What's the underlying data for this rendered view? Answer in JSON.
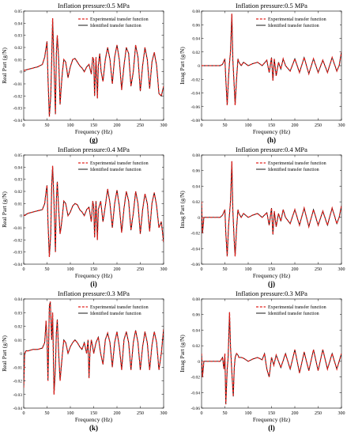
{
  "chart_data": [
    {
      "type": "line",
      "title": "Inflation pressure:0.5 MPa",
      "panel_label": "(g)",
      "xlabel": "Frequency (Hz)",
      "ylabel": "Real Part (g/N)",
      "xlim": [
        0,
        300
      ],
      "ylim": [
        -0.04,
        0.05
      ],
      "xticks": [
        "0",
        "50",
        "100",
        "150",
        "200",
        "250",
        "300"
      ],
      "yticks": [
        "-0.04",
        "-0.03",
        "-0.02",
        "-0.01",
        "0",
        "0.01",
        "0.02",
        "0.03",
        "0.04",
        "0.05"
      ],
      "legend_position": "top-right",
      "series": [
        {
          "name": "Experimental transfer function",
          "style": "dashed",
          "color": "#e0201c"
        },
        {
          "name": "Identified transfer function",
          "style": "solid",
          "color": "#000000"
        }
      ],
      "x": [
        0,
        10,
        20,
        30,
        40,
        45,
        48,
        50,
        52,
        55,
        58,
        60,
        62,
        65,
        68,
        70,
        72,
        75,
        78,
        80,
        83,
        86,
        90,
        95,
        100,
        105,
        110,
        115,
        120,
        125,
        130,
        135,
        140,
        145,
        148,
        150,
        152,
        155,
        158,
        160,
        163,
        166,
        170,
        175,
        180,
        185,
        190,
        195,
        200,
        205,
        210,
        215,
        220,
        225,
        230,
        235,
        240,
        245,
        250,
        255,
        260,
        265,
        270,
        275,
        280,
        285,
        290,
        295,
        300
      ],
      "values": [
        0.001,
        0.002,
        0.003,
        0.004,
        0.006,
        0.012,
        0.02,
        0.025,
        -0.005,
        -0.037,
        -0.02,
        0.01,
        0.044,
        0.005,
        -0.035,
        0.015,
        0.03,
        0.01,
        -0.027,
        -0.015,
        0.0,
        0.01,
        0.008,
        -0.005,
        0.004,
        0.01,
        0.011,
        0.008,
        0.005,
        0.003,
        0.0,
        0.004,
        0.006,
        -0.002,
        0.012,
        0.01,
        -0.02,
        0.012,
        -0.022,
        0.005,
        0.015,
        0.0,
        -0.008,
        0.01,
        0.02,
        0.01,
        -0.01,
        0.012,
        0.022,
        0.01,
        -0.015,
        0.005,
        0.02,
        0.015,
        -0.012,
        0.0,
        0.022,
        0.012,
        -0.016,
        0.005,
        0.02,
        0.01,
        -0.014,
        0.008,
        0.016,
        0.005,
        -0.018,
        -0.02,
        -0.012
      ]
    },
    {
      "type": "line",
      "title": "Inflation pressure:0.5 MPa",
      "panel_label": "(h)",
      "xlabel": "Frequency (Hz)",
      "ylabel": "Imag Part (g/N)",
      "xlim": [
        0,
        300
      ],
      "ylim": [
        -0.08,
        0.08
      ],
      "xticks": [
        "0",
        "50",
        "100",
        "150",
        "200",
        "250",
        "300"
      ],
      "yticks": [
        "-0.08",
        "-0.06",
        "-0.04",
        "-0.02",
        "0",
        "0.02",
        "0.04",
        "0.06",
        "0.08"
      ],
      "legend_position": "top-right",
      "series": [
        {
          "name": "Experimental transfer function",
          "style": "dashed",
          "color": "#e0201c"
        },
        {
          "name": "Identified transfer function",
          "style": "solid",
          "color": "#000000"
        }
      ],
      "x": [
        0,
        10,
        20,
        30,
        40,
        45,
        50,
        52,
        55,
        58,
        60,
        62,
        65,
        67,
        70,
        72,
        75,
        78,
        80,
        85,
        90,
        100,
        110,
        120,
        130,
        140,
        145,
        150,
        153,
        156,
        160,
        165,
        170,
        175,
        180,
        190,
        200,
        210,
        220,
        230,
        240,
        250,
        260,
        270,
        280,
        290,
        295,
        300
      ],
      "values": [
        0.0,
        0.0,
        0.0,
        0.0,
        0.0,
        0.002,
        0.01,
        -0.02,
        -0.058,
        -0.015,
        0.005,
        0.02,
        0.076,
        0.01,
        -0.03,
        -0.058,
        -0.02,
        0.01,
        0.005,
        0.0,
        0.005,
        0.0,
        0.003,
        0.005,
        0.0,
        0.008,
        -0.01,
        0.012,
        -0.022,
        0.01,
        -0.015,
        0.005,
        -0.005,
        0.01,
        0.0,
        -0.008,
        0.01,
        -0.01,
        0.012,
        -0.012,
        0.01,
        -0.01,
        0.008,
        -0.01,
        0.012,
        -0.008,
        0.0,
        0.02
      ]
    },
    {
      "type": "line",
      "title": "Inflation pressure:0.4 MPa",
      "panel_label": "(i)",
      "xlabel": "Frequency (Hz)",
      "ylabel": "Real Part (g/N)",
      "xlim": [
        0,
        300
      ],
      "ylim": [
        -0.04,
        0.05
      ],
      "xticks": [
        "0",
        "50",
        "100",
        "150",
        "200",
        "250",
        "300"
      ],
      "yticks": [
        "-0.04",
        "-0.03",
        "-0.02",
        "-0.01",
        "0",
        "0.01",
        "0.02",
        "0.03",
        "0.04",
        "0.05"
      ],
      "legend_position": "top-right",
      "series": [
        {
          "name": "Experimental transfer function",
          "style": "dashed",
          "color": "#e0201c"
        },
        {
          "name": "Identified transfer function",
          "style": "solid",
          "color": "#000000"
        }
      ],
      "x": [
        0,
        10,
        20,
        30,
        40,
        45,
        48,
        50,
        52,
        55,
        58,
        60,
        62,
        65,
        68,
        70,
        72,
        75,
        78,
        80,
        83,
        86,
        90,
        95,
        100,
        105,
        110,
        115,
        120,
        125,
        130,
        135,
        140,
        145,
        148,
        150,
        152,
        155,
        158,
        160,
        165,
        170,
        175,
        180,
        185,
        190,
        195,
        200,
        205,
        210,
        215,
        220,
        225,
        230,
        235,
        240,
        245,
        250,
        255,
        260,
        265,
        270,
        275,
        280,
        285,
        290,
        295,
        300
      ],
      "values": [
        0.0,
        0.002,
        0.003,
        0.004,
        0.005,
        0.01,
        0.02,
        0.025,
        -0.005,
        -0.034,
        -0.015,
        0.025,
        0.041,
        0.01,
        -0.03,
        0.012,
        0.028,
        0.005,
        -0.015,
        -0.01,
        0.0,
        0.012,
        0.01,
        0.0,
        0.003,
        0.008,
        0.01,
        0.009,
        0.005,
        0.003,
        0.0,
        0.005,
        0.007,
        -0.005,
        0.012,
        0.008,
        -0.018,
        0.012,
        -0.02,
        0.005,
        0.012,
        -0.005,
        0.008,
        0.022,
        0.01,
        -0.01,
        0.01,
        0.021,
        0.008,
        -0.014,
        0.006,
        0.02,
        0.012,
        -0.012,
        0.002,
        0.02,
        0.01,
        -0.015,
        0.005,
        0.018,
        0.01,
        -0.013,
        0.01,
        0.019,
        0.008,
        -0.01,
        -0.005,
        -0.022
      ]
    },
    {
      "type": "line",
      "title": "Inflation pressure:0.4 MPa",
      "panel_label": "(j)",
      "xlabel": "Frequency (Hz)",
      "ylabel": "Imag Part (g/N)",
      "xlim": [
        0,
        300
      ],
      "ylim": [
        -0.06,
        0.08
      ],
      "xticks": [
        "0",
        "50",
        "100",
        "150",
        "200",
        "250",
        "300"
      ],
      "yticks": [
        "-0.06",
        "-0.04",
        "-0.02",
        "0",
        "0.02",
        "0.04",
        "0.06",
        "0.08"
      ],
      "legend_position": "top-right",
      "series": [
        {
          "name": "Experimental transfer function",
          "style": "dashed",
          "color": "#e0201c"
        },
        {
          "name": "Identified transfer function",
          "style": "solid",
          "color": "#000000"
        }
      ],
      "x": [
        0,
        2,
        5,
        10,
        20,
        30,
        40,
        45,
        50,
        52,
        55,
        58,
        60,
        62,
        65,
        67,
        70,
        72,
        75,
        78,
        80,
        85,
        90,
        100,
        110,
        120,
        130,
        140,
        145,
        150,
        153,
        156,
        160,
        165,
        170,
        175,
        180,
        190,
        200,
        210,
        220,
        230,
        240,
        250,
        260,
        270,
        280,
        290,
        295,
        300
      ],
      "values": [
        0.02,
        -0.02,
        0.0,
        0.0,
        0.0,
        0.0,
        0.0,
        0.003,
        0.01,
        -0.02,
        -0.05,
        -0.01,
        0.005,
        0.02,
        0.072,
        0.01,
        -0.03,
        -0.05,
        -0.015,
        0.01,
        0.005,
        0.0,
        0.005,
        0.0,
        0.003,
        0.005,
        0.0,
        0.006,
        -0.01,
        0.012,
        -0.022,
        0.008,
        -0.012,
        0.005,
        -0.005,
        0.01,
        0.0,
        -0.008,
        0.01,
        -0.01,
        0.012,
        -0.012,
        0.01,
        -0.01,
        0.008,
        -0.01,
        0.012,
        -0.008,
        0.0,
        0.015
      ]
    },
    {
      "type": "line",
      "title": "Inflation pressure:0.3 MPa",
      "panel_label": "(k)",
      "xlabel": "Frequency (Hz)",
      "ylabel": "Real Part (g/N)",
      "xlim": [
        0,
        300
      ],
      "ylim": [
        -0.04,
        0.04
      ],
      "xticks": [
        "0",
        "50",
        "100",
        "150",
        "200",
        "250",
        "300"
      ],
      "yticks": [
        "-0.04",
        "-0.03",
        "-0.02",
        "-0.01",
        "0",
        "0.01",
        "0.02",
        "0.03",
        "0.04"
      ],
      "legend_position": "top-right",
      "series": [
        {
          "name": "Experimental transfer function",
          "style": "dashed",
          "color": "#e0201c"
        },
        {
          "name": "Identified transfer function",
          "style": "solid",
          "color": "#000000"
        }
      ],
      "x": [
        0,
        2,
        5,
        10,
        20,
        30,
        40,
        45,
        48,
        50,
        52,
        55,
        57,
        60,
        62,
        65,
        68,
        70,
        72,
        75,
        78,
        80,
        83,
        86,
        90,
        95,
        100,
        105,
        110,
        115,
        120,
        125,
        130,
        135,
        138,
        140,
        142,
        145,
        148,
        150,
        155,
        160,
        165,
        170,
        175,
        180,
        185,
        190,
        195,
        200,
        205,
        210,
        215,
        220,
        225,
        230,
        235,
        240,
        245,
        250,
        255,
        260,
        265,
        270,
        275,
        280,
        285,
        290,
        295,
        300
      ],
      "values": [
        -0.025,
        0.0,
        0.002,
        0.002,
        0.003,
        0.003,
        0.004,
        0.008,
        0.024,
        0.01,
        -0.02,
        0.035,
        0.038,
        0.01,
        0.03,
        -0.03,
        -0.01,
        0.015,
        0.025,
        0.0,
        -0.02,
        -0.012,
        0.0,
        0.01,
        0.008,
        0.0,
        0.005,
        0.008,
        0.01,
        0.008,
        0.005,
        0.003,
        0.008,
        0.0,
        0.01,
        -0.018,
        0.0,
        0.01,
        0.005,
        0.0,
        0.008,
        0.012,
        0.0,
        -0.008,
        0.01,
        0.015,
        0.008,
        -0.01,
        0.008,
        0.016,
        0.005,
        -0.012,
        0.01,
        0.016,
        0.008,
        -0.012,
        0.008,
        0.017,
        0.008,
        -0.012,
        0.005,
        0.016,
        0.008,
        -0.012,
        0.006,
        0.016,
        0.008,
        -0.012,
        0.0,
        0.018
      ]
    },
    {
      "type": "line",
      "title": "Inflation pressure:0.3 MPa",
      "panel_label": "(l)",
      "xlabel": "Frequency (Hz)",
      "ylabel": "Imag Part (g/N)",
      "xlim": [
        0,
        300
      ],
      "ylim": [
        -0.06,
        0.08
      ],
      "xticks": [
        "0",
        "50",
        "100",
        "150",
        "200",
        "250",
        "300"
      ],
      "yticks": [
        "-0.06",
        "-0.04",
        "-0.02",
        "0",
        "0.02",
        "0.04",
        "0.06",
        "0.08"
      ],
      "legend_position": "top-right",
      "series": [
        {
          "name": "Experimental transfer function",
          "style": "dashed",
          "color": "#e0201c"
        },
        {
          "name": "Identified transfer function",
          "style": "solid",
          "color": "#000000"
        }
      ],
      "x": [
        0,
        2,
        5,
        10,
        20,
        30,
        40,
        45,
        48,
        50,
        52,
        55,
        57,
        60,
        62,
        65,
        68,
        70,
        72,
        75,
        78,
        80,
        85,
        90,
        100,
        110,
        120,
        130,
        135,
        140,
        145,
        150,
        155,
        160,
        170,
        180,
        190,
        200,
        210,
        220,
        230,
        240,
        250,
        260,
        270,
        280,
        290,
        300
      ],
      "values": [
        0.01,
        -0.02,
        0.0,
        0.0,
        0.0,
        0.0,
        0.0,
        0.005,
        -0.01,
        0.01,
        -0.055,
        -0.01,
        0.005,
        0.063,
        0.02,
        -0.015,
        -0.045,
        -0.01,
        0.005,
        0.01,
        0.008,
        0.005,
        0.005,
        0.004,
        0.0,
        0.003,
        0.005,
        0.002,
        0.01,
        -0.01,
        -0.02,
        0.005,
        -0.005,
        0.008,
        -0.008,
        0.01,
        -0.01,
        0.015,
        -0.015,
        0.012,
        -0.012,
        0.015,
        -0.012,
        0.015,
        -0.01,
        0.01,
        -0.01,
        0.01
      ]
    }
  ]
}
